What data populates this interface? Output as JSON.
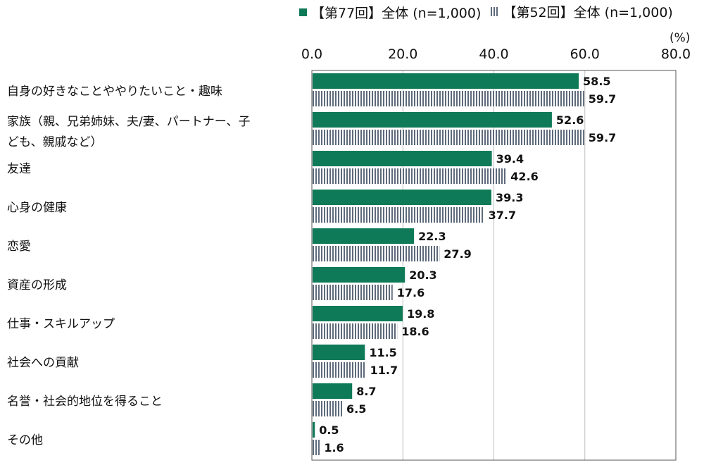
{
  "legend": {
    "series_a": "【第77回】全体 (n=1,000)",
    "series_b": "【第52回】全体 (n=1,000)"
  },
  "unit_label": "(%)",
  "colors": {
    "series_a": "#0f7a57",
    "series_b": "#5e6a7a",
    "grid": "#bfbfbf",
    "axis": "#555555"
  },
  "chart_data": {
    "type": "bar",
    "orientation": "horizontal",
    "categories": [
      [
        "自身の好きなことややりたいこと・趣味"
      ],
      [
        "家族（親、兄弟姉妹、夫/妻、パートナー、子",
        "ども、親戚など）"
      ],
      [
        "友達"
      ],
      [
        "心身の健康"
      ],
      [
        "恋愛"
      ],
      [
        "資産の形成"
      ],
      [
        "仕事・スキルアップ"
      ],
      [
        "社会への貢献"
      ],
      [
        "名誉・社会的地位を得ること"
      ],
      [
        "その他"
      ]
    ],
    "series": [
      {
        "name": "【第77回】全体 (n=1,000)",
        "values": [
          58.5,
          52.6,
          39.4,
          39.3,
          22.3,
          20.3,
          19.8,
          11.5,
          8.7,
          0.5
        ],
        "labels": [
          "58.5",
          "52.6",
          "39.4",
          "39.3",
          "22.3",
          "20.3",
          "19.8",
          "11.5",
          "8.7",
          "0.5"
        ]
      },
      {
        "name": "【第52回】全体 (n=1,000)",
        "values": [
          59.7,
          59.7,
          42.6,
          37.7,
          27.9,
          17.6,
          18.6,
          11.7,
          6.5,
          1.6
        ],
        "labels": [
          "59.7",
          "59.7",
          "42.6",
          "37.7",
          "27.9",
          "17.6",
          "18.6",
          "11.7",
          "6.5",
          "1.6"
        ]
      }
    ],
    "xlim": [
      0,
      80
    ],
    "xticks": [
      0,
      20,
      40,
      60,
      80
    ],
    "xtick_labels": [
      "0.0",
      "20.0",
      "40.0",
      "60.0",
      "80.0"
    ],
    "axis_position": "top",
    "grid": true,
    "legend_position": "top"
  }
}
